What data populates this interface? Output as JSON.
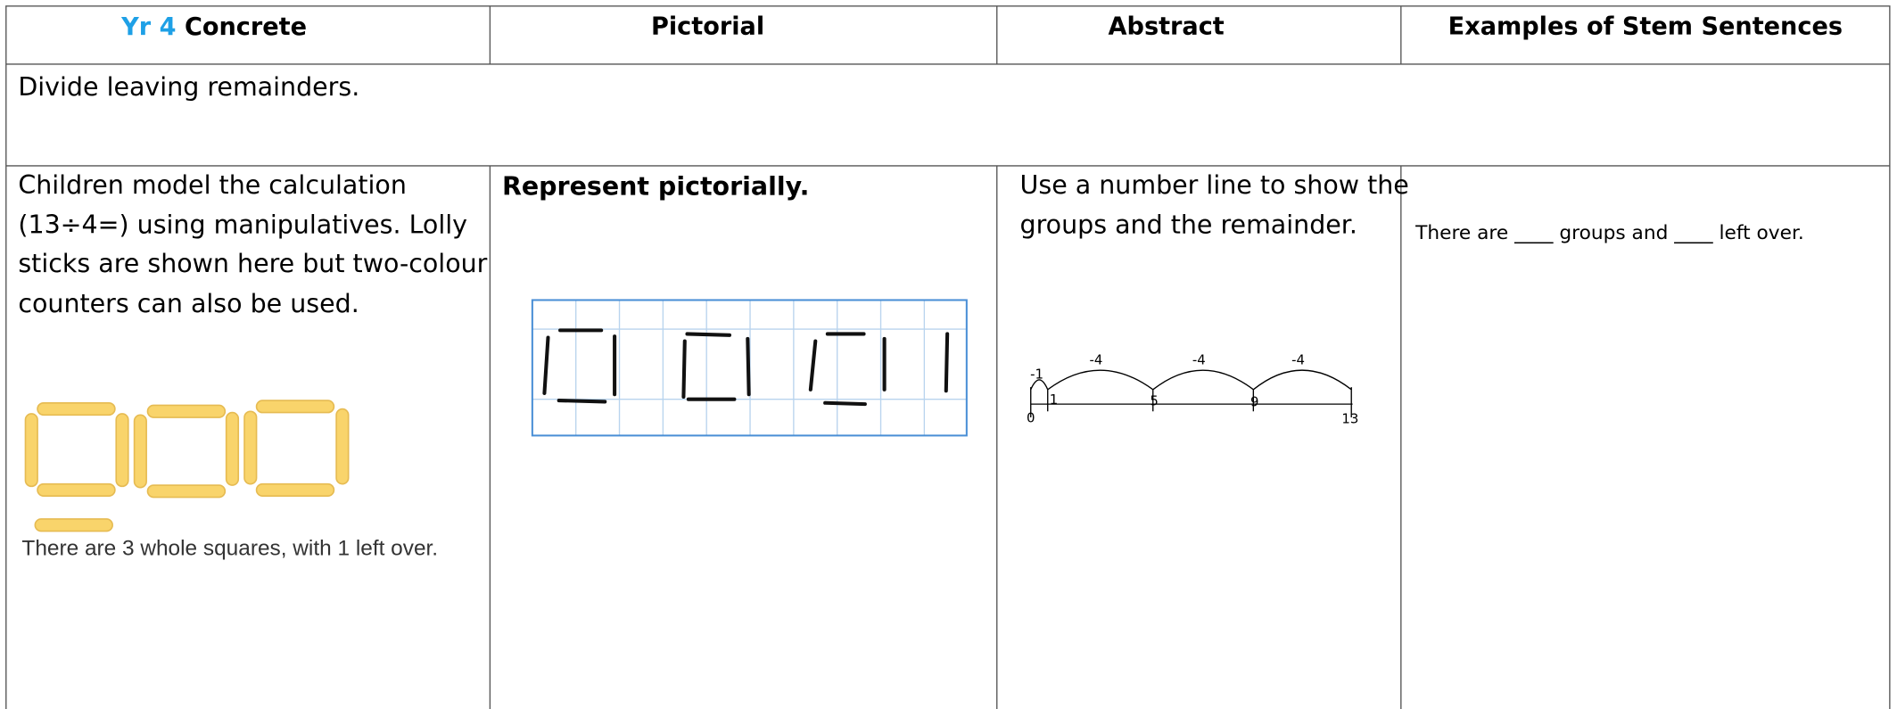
{
  "table": {
    "header": [
      {
        "prefix": "Yr 4",
        "label": "Concrete"
      },
      {
        "label": "Pictorial"
      },
      {
        "label": "Abstract"
      },
      {
        "label": "Examples of Stem Sentences"
      }
    ],
    "topic": "Divide leaving remainders.",
    "concrete": {
      "lines": [
        "Children model the calculation",
        "(13÷4=) using manipulatives. Lolly",
        "sticks are shown here but two-colour",
        "counters can also be used."
      ],
      "caption": "There are 3 whole squares, with 1 left over."
    },
    "pictorial": {
      "heading": "Represent pictorially."
    },
    "abstract": {
      "lines": [
        "Use a number line to show the",
        "groups and the remainder."
      ],
      "jump_labels": [
        "-1",
        "-4",
        "-4",
        "-4"
      ],
      "points": [
        "0",
        "1",
        "5",
        "9",
        "13"
      ]
    },
    "stem": "There are ____ groups and ____ left over."
  }
}
